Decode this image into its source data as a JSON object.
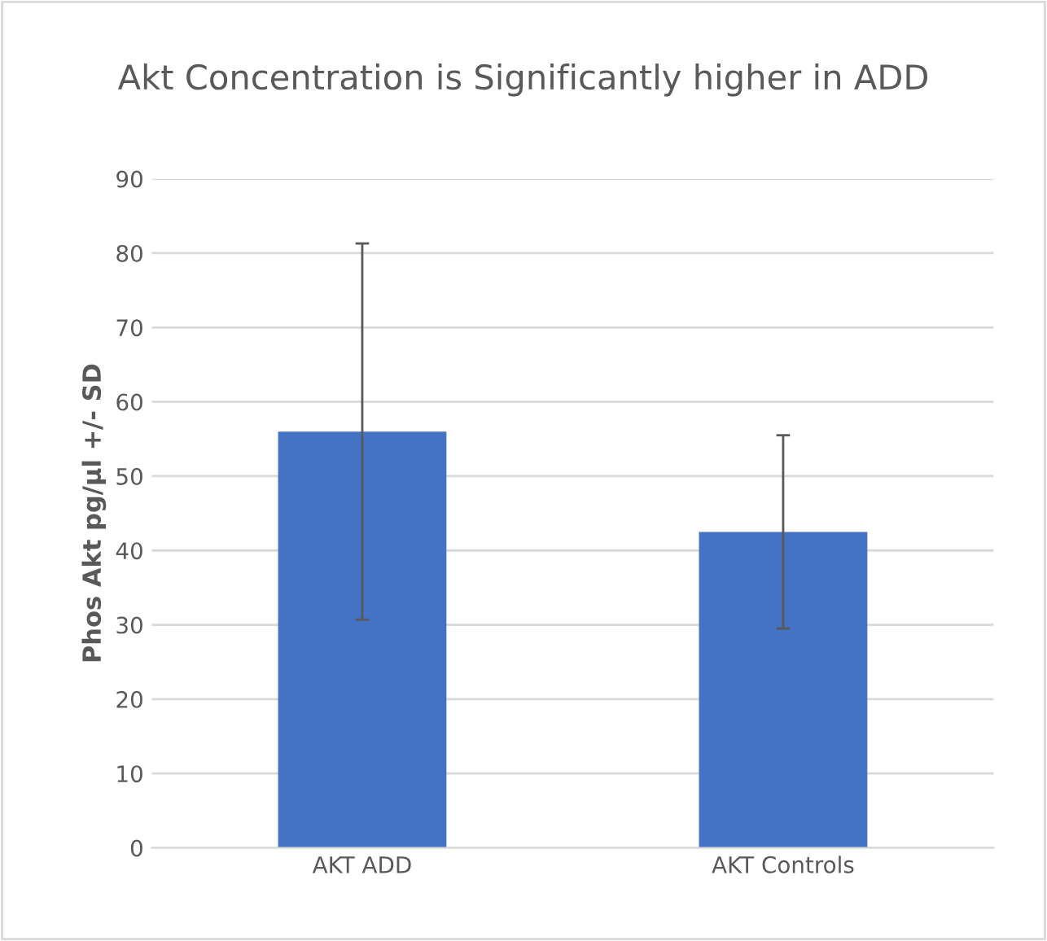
{
  "chart_data": {
    "type": "bar",
    "title": "Akt Concentration is Significantly higher in ADD",
    "ylabel": "Phos Akt pg/µl +/- SD",
    "categories": [
      "AKT ADD",
      "AKT Controls"
    ],
    "values": [
      56,
      42.5
    ],
    "errors": [
      25.3,
      13
    ],
    "color": "#4472c4",
    "ylim": [
      0,
      90
    ],
    "yticks": [
      0,
      10,
      20,
      30,
      40,
      50,
      60,
      70,
      80,
      90
    ],
    "grid": "y"
  }
}
